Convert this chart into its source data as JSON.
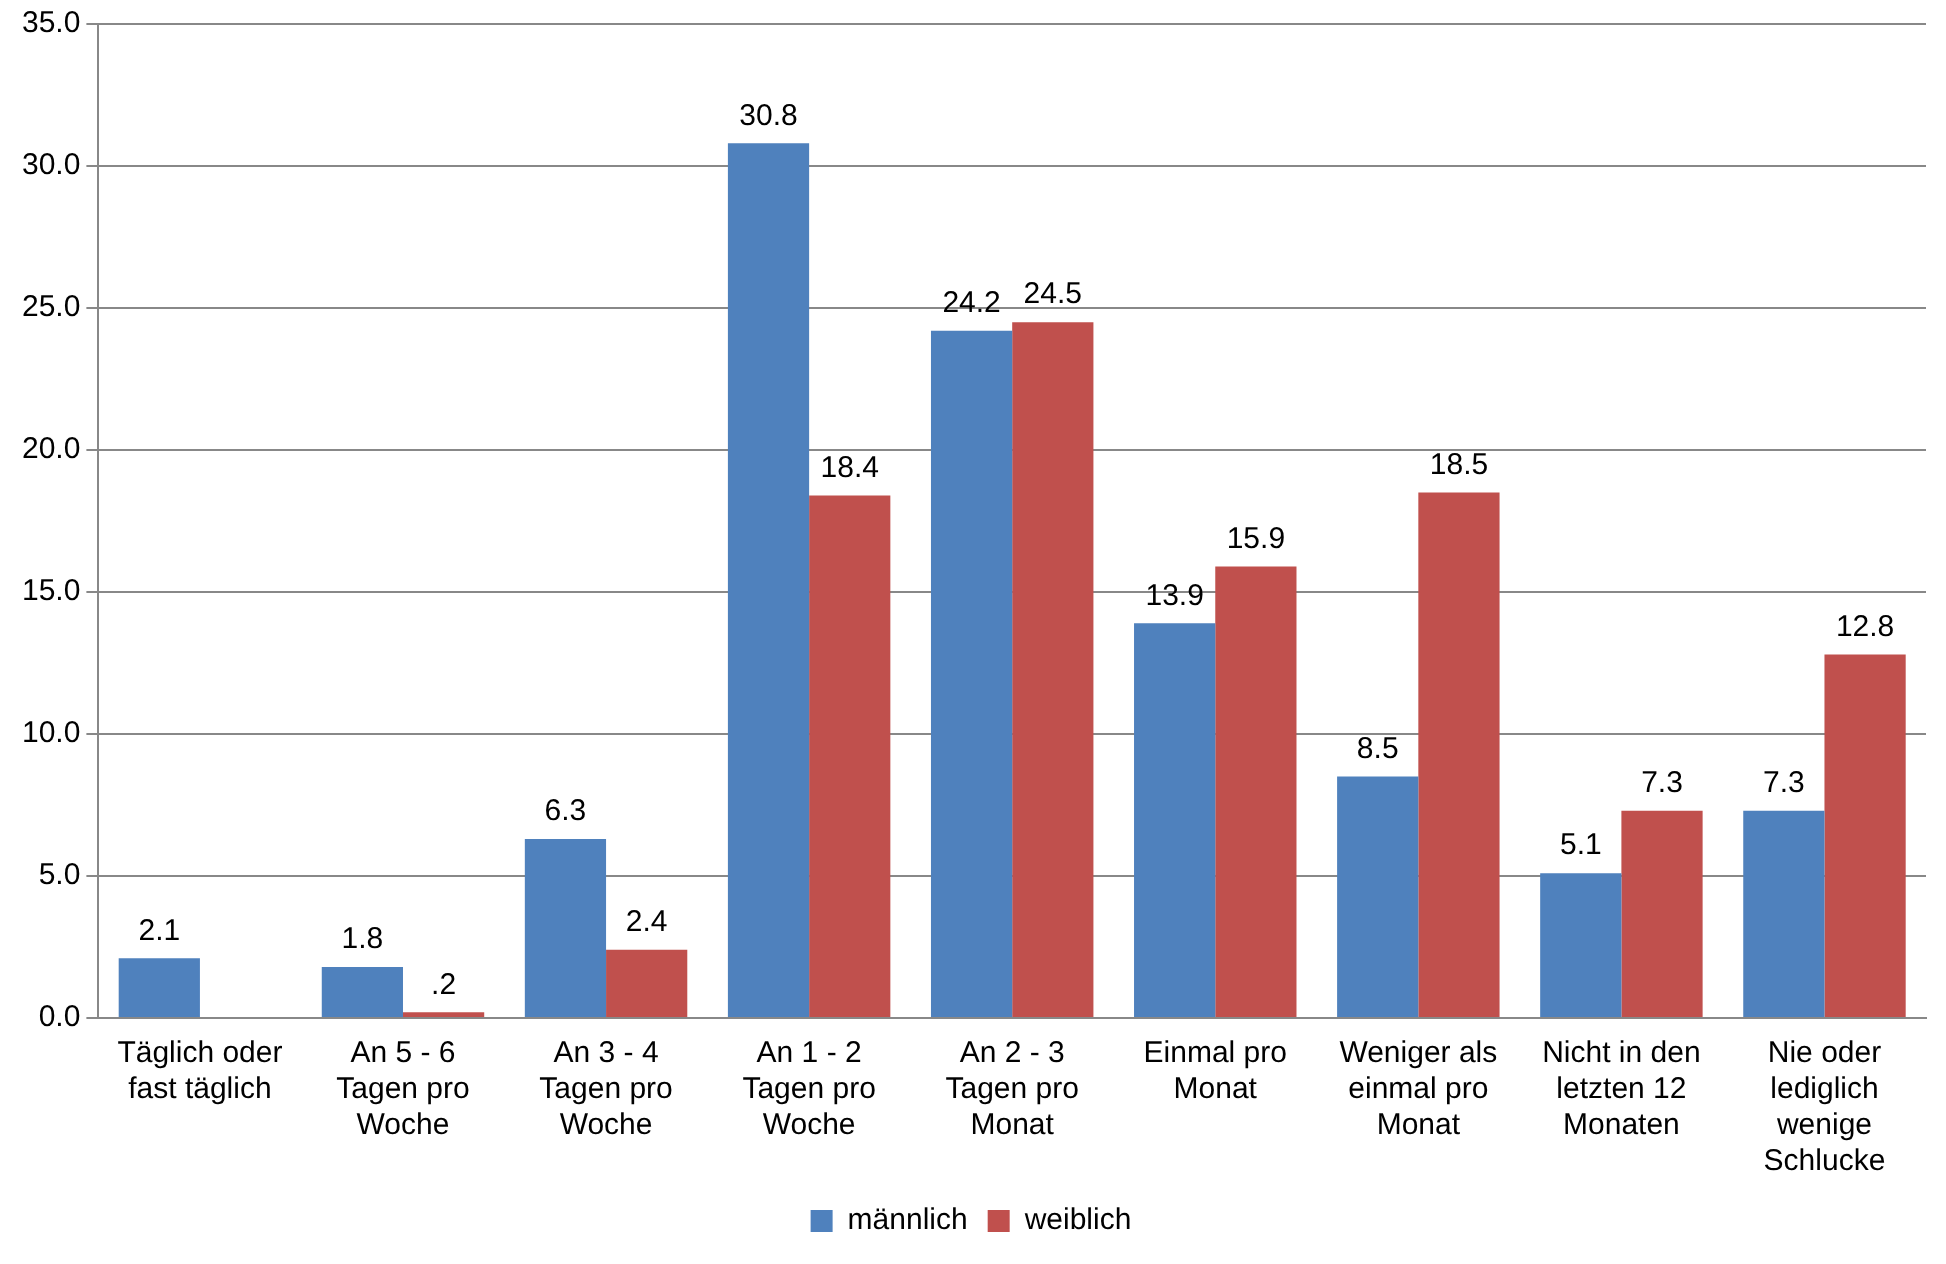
{
  "chart_data": {
    "type": "bar",
    "categories": [
      "Täglich oder fast täglich",
      "An 5 - 6 Tagen pro Woche",
      "An 3 - 4 Tagen pro Woche",
      "An 1 - 2 Tagen pro Woche",
      "An 2 - 3 Tagen pro Monat",
      "Einmal pro Monat",
      "Weniger als einmal pro Monat",
      "Nicht in den letzten 12 Monaten",
      "Nie oder lediglich wenige Schlucke"
    ],
    "series": [
      {
        "name": "männlich",
        "color": "#4f81bd",
        "values": [
          2.1,
          1.8,
          6.3,
          30.8,
          24.2,
          13.9,
          8.5,
          5.1,
          7.3
        ],
        "value_labels": [
          "2.1",
          "1.8",
          "6.3",
          "30.8",
          "24.2",
          "13.9",
          "8.5",
          "5.1",
          "7.3"
        ]
      },
      {
        "name": "weiblich",
        "color": "#c0504d",
        "values": [
          null,
          0.2,
          2.4,
          18.4,
          24.5,
          15.9,
          18.5,
          7.3,
          12.8
        ],
        "value_labels": [
          null,
          ".2",
          "2.4",
          "18.4",
          "24.5",
          "15.9",
          "18.5",
          "7.3",
          "12.8"
        ]
      }
    ],
    "ylim": [
      0,
      35
    ],
    "yticks": [
      {
        "value": 0,
        "label": "0.0"
      },
      {
        "value": 5,
        "label": "5.0"
      },
      {
        "value": 10,
        "label": "10.0"
      },
      {
        "value": 15,
        "label": "15.0"
      },
      {
        "value": 20,
        "label": "20.0"
      },
      {
        "value": 25,
        "label": "25.0"
      },
      {
        "value": 30,
        "label": "30.0"
      },
      {
        "value": 35,
        "label": "35.0"
      }
    ],
    "grid": "y",
    "legend": "bottom"
  }
}
